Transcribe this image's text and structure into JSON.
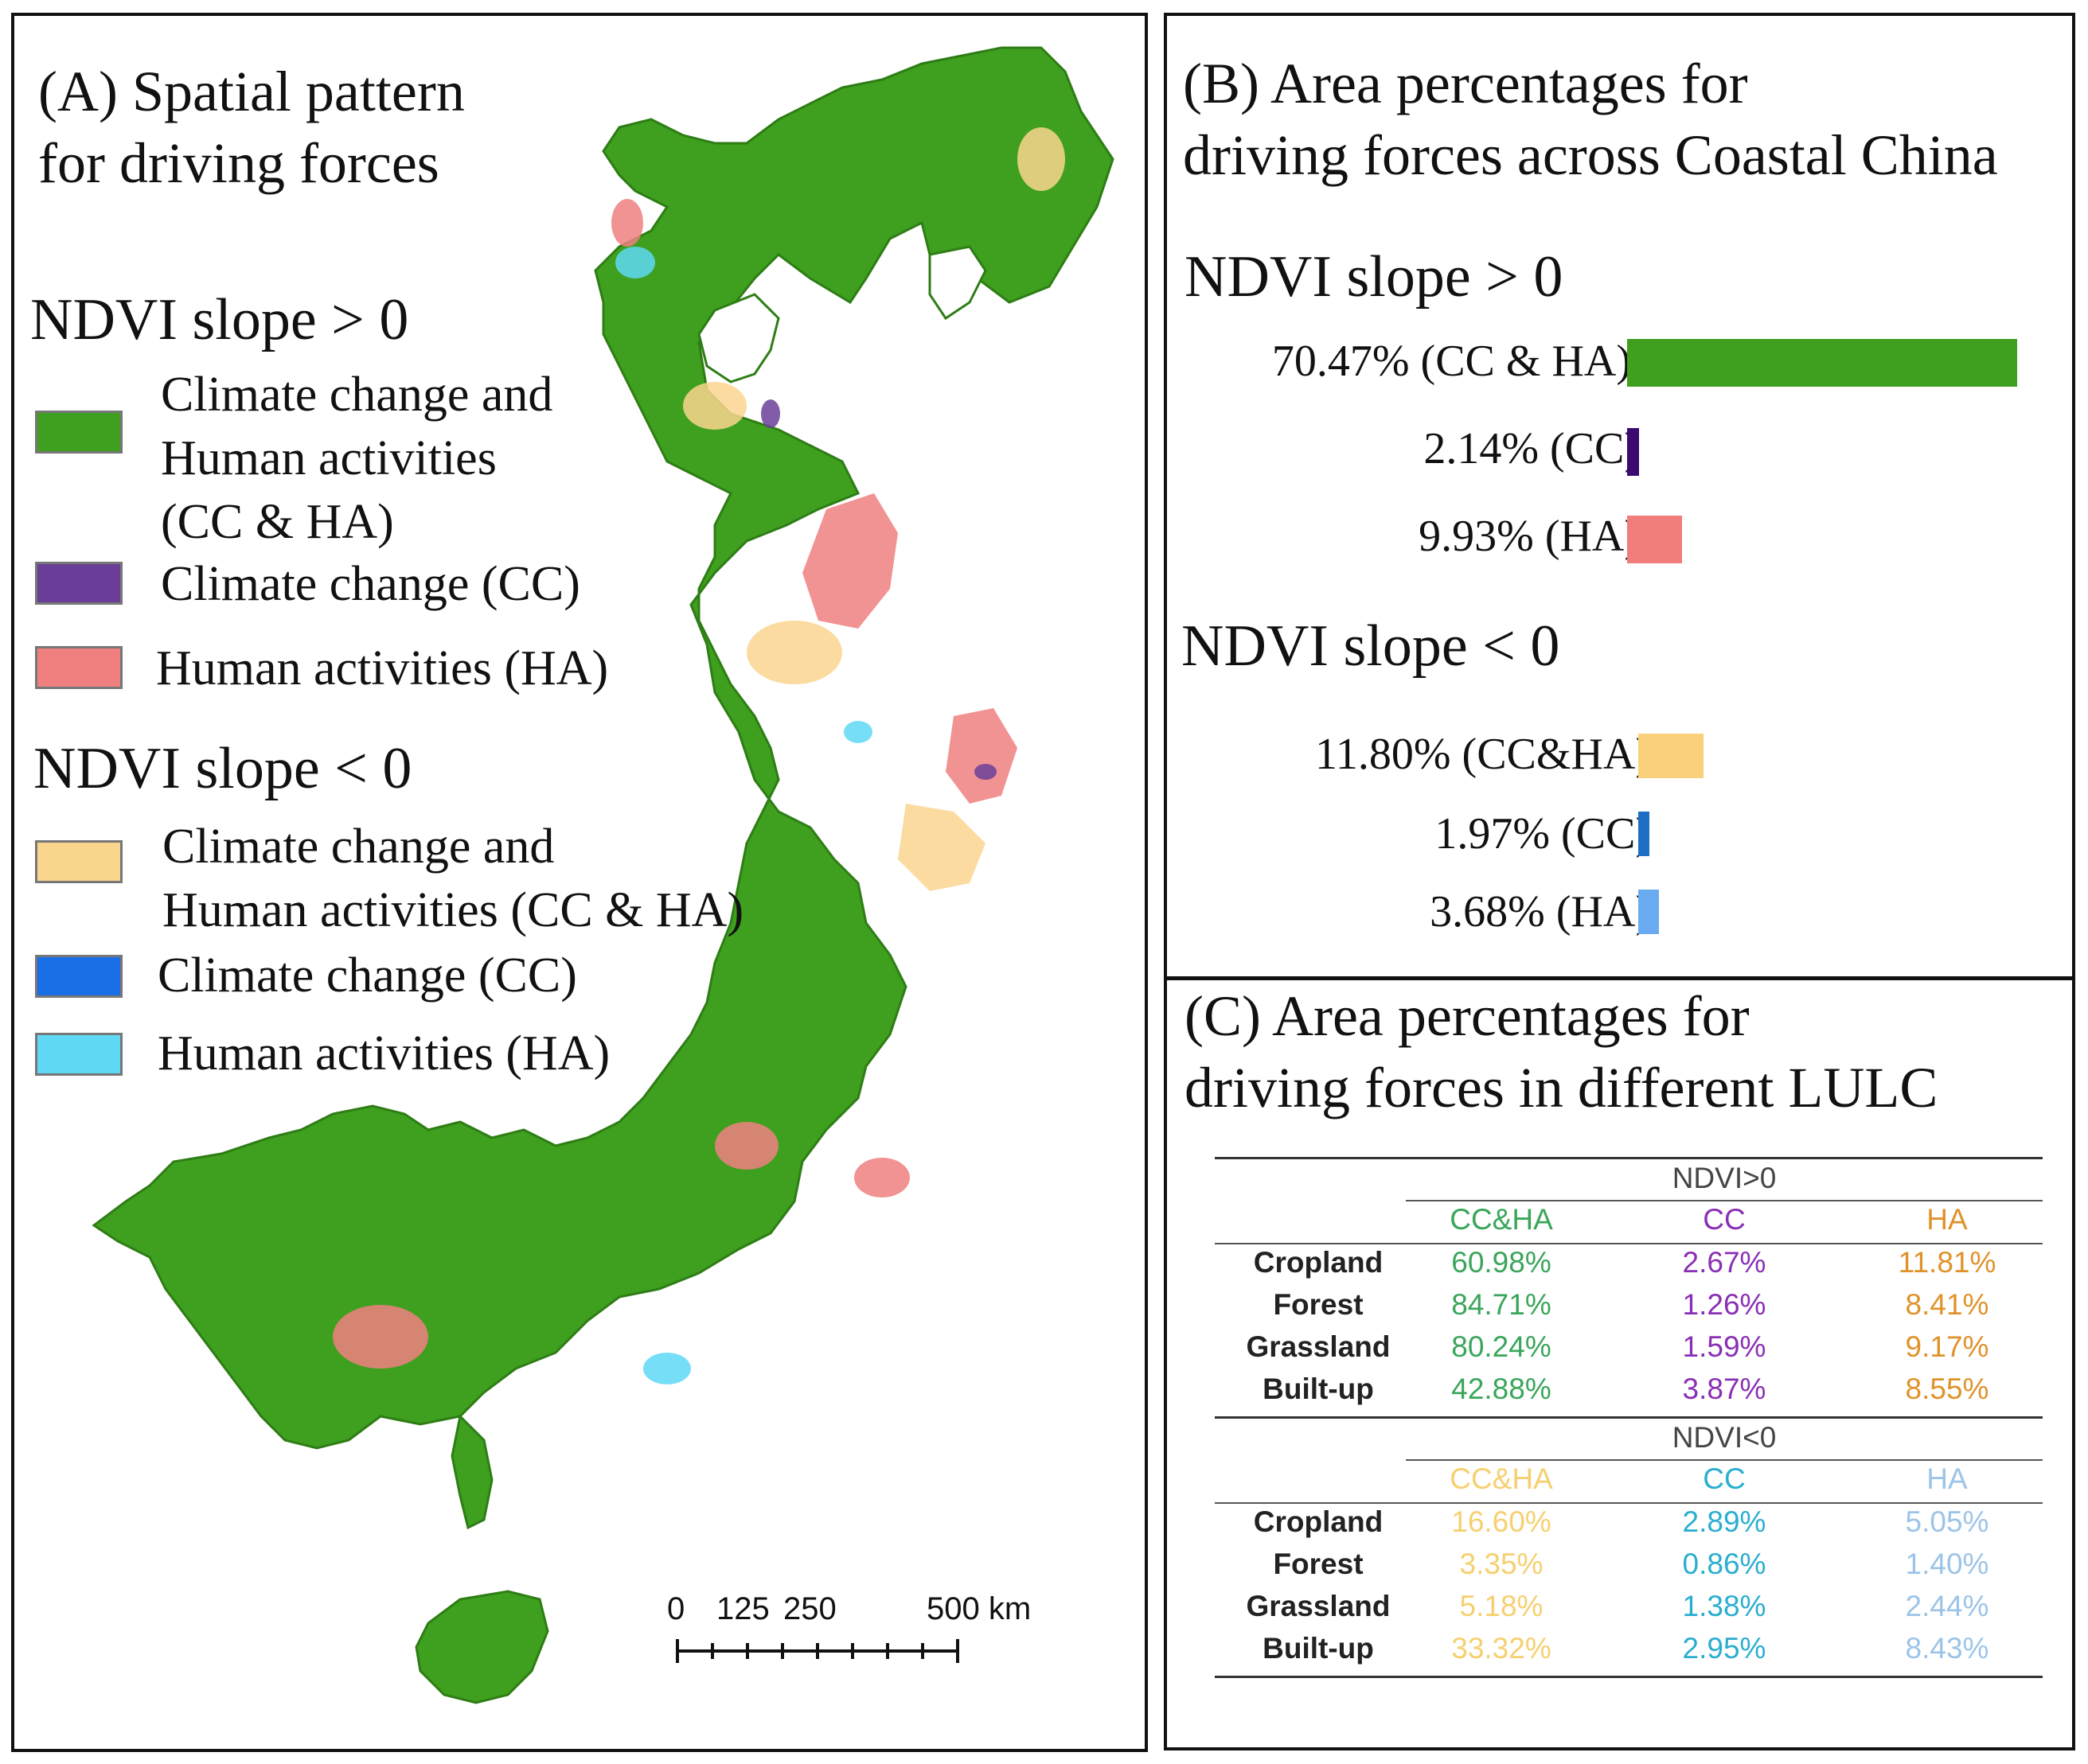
{
  "panel_a": {
    "title_line1": "(A) Spatial pattern",
    "title_line2": "for driving forces",
    "pos_heading": "NDVI slope > 0",
    "neg_heading": "NDVI slope < 0",
    "legend_pos": [
      {
        "lines": [
          "Climate change and",
          "Human activities",
          " (CC & HA)"
        ],
        "color": "#3ea01e"
      },
      {
        "lines": [
          "Climate change (CC)"
        ],
        "color": "#6b3f99"
      },
      {
        "lines": [
          "Human activities (HA)"
        ],
        "color": "#f08080"
      }
    ],
    "legend_neg": [
      {
        "lines": [
          "Climate change and",
          "Human activities (CC & HA)"
        ],
        "color": "#fad58e"
      },
      {
        "lines": [
          "Climate change (CC)"
        ],
        "color": "#1a6fe6"
      },
      {
        "lines": [
          "Human activities (HA)"
        ],
        "color": "#5ed8f5"
      }
    ],
    "scale_labels": [
      "0",
      "125",
      "250",
      "500 km"
    ]
  },
  "panel_b": {
    "title_line1": "(B) Area percentages for",
    "title_line2": "driving forces across Coastal China",
    "pos_heading": "NDVI slope > 0",
    "neg_heading": "NDVI slope < 0",
    "bars_pos": [
      {
        "label": "70.47%  (CC & HA)",
        "value": 70.47,
        "color": "#3ea01e"
      },
      {
        "label": "2.14%  (CC)",
        "value": 2.14,
        "color": "#3a0a70"
      },
      {
        "label": "9.93%  (HA)",
        "value": 9.93,
        "color": "#f07c7c"
      }
    ],
    "bars_neg": [
      {
        "label": "11.80%  (CC&HA)",
        "value": 11.8,
        "color": "#fad07a"
      },
      {
        "label": "1.97%   (CC)",
        "value": 1.97,
        "color": "#1e6fc4"
      },
      {
        "label": "3.68%   (HA)",
        "value": 3.68,
        "color": "#6aaaf0"
      }
    ]
  },
  "panel_c": {
    "title_line1": "(C) Area percentages for",
    "title_line2": "driving forces in different LULC",
    "groups": [
      {
        "name": "NDVI>0",
        "columns": [
          "CC&HA",
          "CC",
          "HA"
        ],
        "column_colors": [
          "#3aa65a",
          "#8a2fb5",
          "#e0922a"
        ],
        "rows": [
          {
            "label": "Cropland",
            "values": [
              "60.98%",
              "2.67%",
              "11.81%"
            ]
          },
          {
            "label": "Forest",
            "values": [
              "84.71%",
              "1.26%",
              "8.41%"
            ]
          },
          {
            "label": "Grassland",
            "values": [
              "80.24%",
              "1.59%",
              "9.17%"
            ]
          },
          {
            "label": "Built-up",
            "values": [
              "42.88%",
              "3.87%",
              "8.55%"
            ]
          }
        ]
      },
      {
        "name": "NDVI<0",
        "columns": [
          "CC&HA",
          "CC",
          "HA"
        ],
        "column_colors": [
          "#f6d070",
          "#2aaed0",
          "#9cc4e8"
        ],
        "rows": [
          {
            "label": "Cropland",
            "values": [
              "16.60%",
              "2.89%",
              "5.05%"
            ]
          },
          {
            "label": "Forest",
            "values": [
              "3.35%",
              "0.86%",
              "1.40%"
            ]
          },
          {
            "label": "Grassland",
            "values": [
              "5.18%",
              "1.38%",
              "2.44%"
            ]
          },
          {
            "label": "Built-up",
            "values": [
              "33.32%",
              "2.95%",
              "8.43%"
            ]
          }
        ]
      }
    ]
  }
}
